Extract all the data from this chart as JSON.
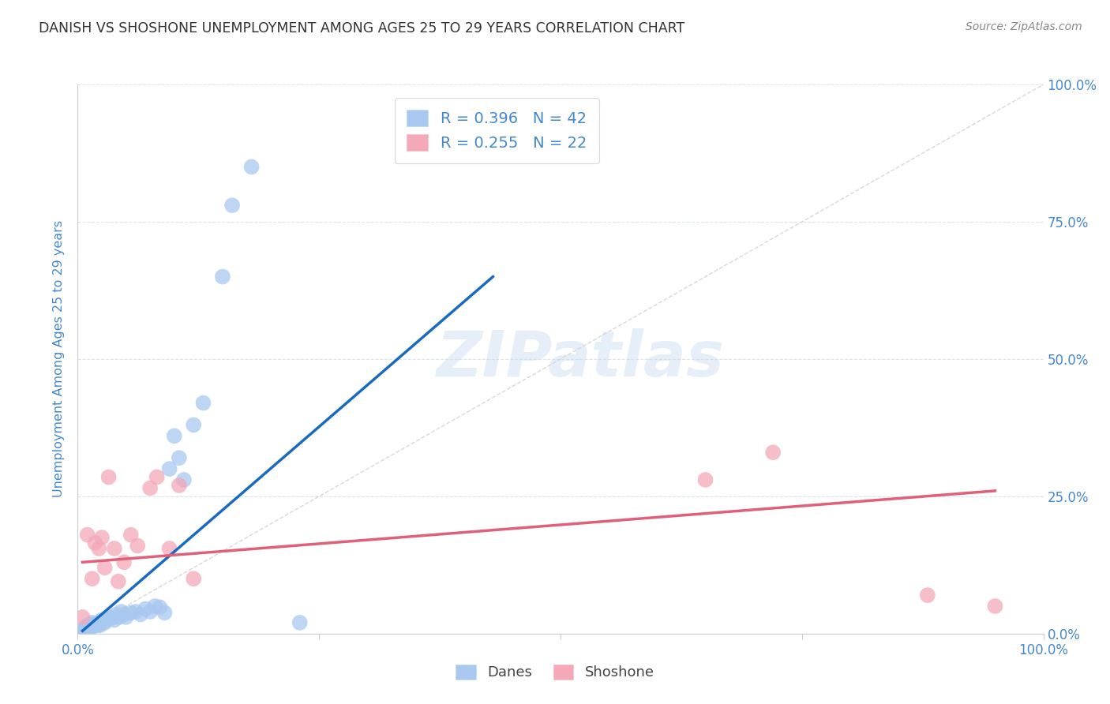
{
  "title": "DANISH VS SHOSHONE UNEMPLOYMENT AMONG AGES 25 TO 29 YEARS CORRELATION CHART",
  "source": "Source: ZipAtlas.com",
  "ylabel": "Unemployment Among Ages 25 to 29 years",
  "xlim": [
    0,
    1.0
  ],
  "ylim": [
    0,
    1.0
  ],
  "xtick_labels": [
    "0.0%",
    "",
    "",
    "",
    "100.0%"
  ],
  "xtick_positions": [
    0,
    0.25,
    0.5,
    0.75,
    1.0
  ],
  "ytick_labels": [
    "100.0%",
    "75.0%",
    "50.0%",
    "25.0%",
    "0.0%"
  ],
  "ytick_positions": [
    1.0,
    0.75,
    0.5,
    0.25,
    0.0
  ],
  "right_ytick_labels": [
    "100.0%",
    "75.0%",
    "50.0%",
    "25.0%",
    "0.0%"
  ],
  "danes_color": "#a8c8f0",
  "shoshone_color": "#f4a8b8",
  "danes_line_color": "#1a6abf",
  "shoshone_line_color": "#e0607a",
  "diagonal_color": "#c8c8c8",
  "danes_R": 0.396,
  "danes_N": 42,
  "shoshone_R": 0.255,
  "shoshone_N": 22,
  "danes_scatter_x": [
    0.005,
    0.007,
    0.008,
    0.01,
    0.01,
    0.012,
    0.013,
    0.015,
    0.015,
    0.018,
    0.02,
    0.022,
    0.023,
    0.025,
    0.028,
    0.03,
    0.032,
    0.035,
    0.038,
    0.04,
    0.043,
    0.045,
    0.048,
    0.05,
    0.055,
    0.06,
    0.065,
    0.07,
    0.075,
    0.08,
    0.085,
    0.09,
    0.095,
    0.1,
    0.105,
    0.11,
    0.12,
    0.13,
    0.15,
    0.16,
    0.18,
    0.23
  ],
  "danes_scatter_y": [
    0.005,
    0.01,
    0.008,
    0.015,
    0.012,
    0.01,
    0.015,
    0.012,
    0.02,
    0.018,
    0.015,
    0.02,
    0.015,
    0.025,
    0.02,
    0.025,
    0.03,
    0.028,
    0.025,
    0.035,
    0.03,
    0.04,
    0.035,
    0.03,
    0.038,
    0.04,
    0.035,
    0.045,
    0.04,
    0.05,
    0.048,
    0.038,
    0.3,
    0.36,
    0.32,
    0.28,
    0.38,
    0.42,
    0.65,
    0.78,
    0.85,
    0.02
  ],
  "shoshone_scatter_x": [
    0.005,
    0.01,
    0.015,
    0.018,
    0.022,
    0.025,
    0.028,
    0.032,
    0.038,
    0.042,
    0.048,
    0.055,
    0.062,
    0.075,
    0.082,
    0.095,
    0.105,
    0.12,
    0.65,
    0.72,
    0.88,
    0.95
  ],
  "shoshone_scatter_y": [
    0.03,
    0.18,
    0.1,
    0.165,
    0.155,
    0.175,
    0.12,
    0.285,
    0.155,
    0.095,
    0.13,
    0.18,
    0.16,
    0.265,
    0.285,
    0.155,
    0.27,
    0.1,
    0.28,
    0.33,
    0.07,
    0.05
  ],
  "danes_line_x": [
    0.005,
    0.43
  ],
  "danes_line_y": [
    0.005,
    0.65
  ],
  "shoshone_line_x": [
    0.005,
    0.95
  ],
  "shoshone_line_y": [
    0.13,
    0.26
  ],
  "watermark_text": "ZIPatlas",
  "title_color": "#333333",
  "source_color": "#888888",
  "axis_color": "#4488cc",
  "tick_color": "#4488cc",
  "grid_color": "#d8e4f0",
  "legend_text_color": "#4488cc",
  "bottom_legend_text_color": "#444444"
}
